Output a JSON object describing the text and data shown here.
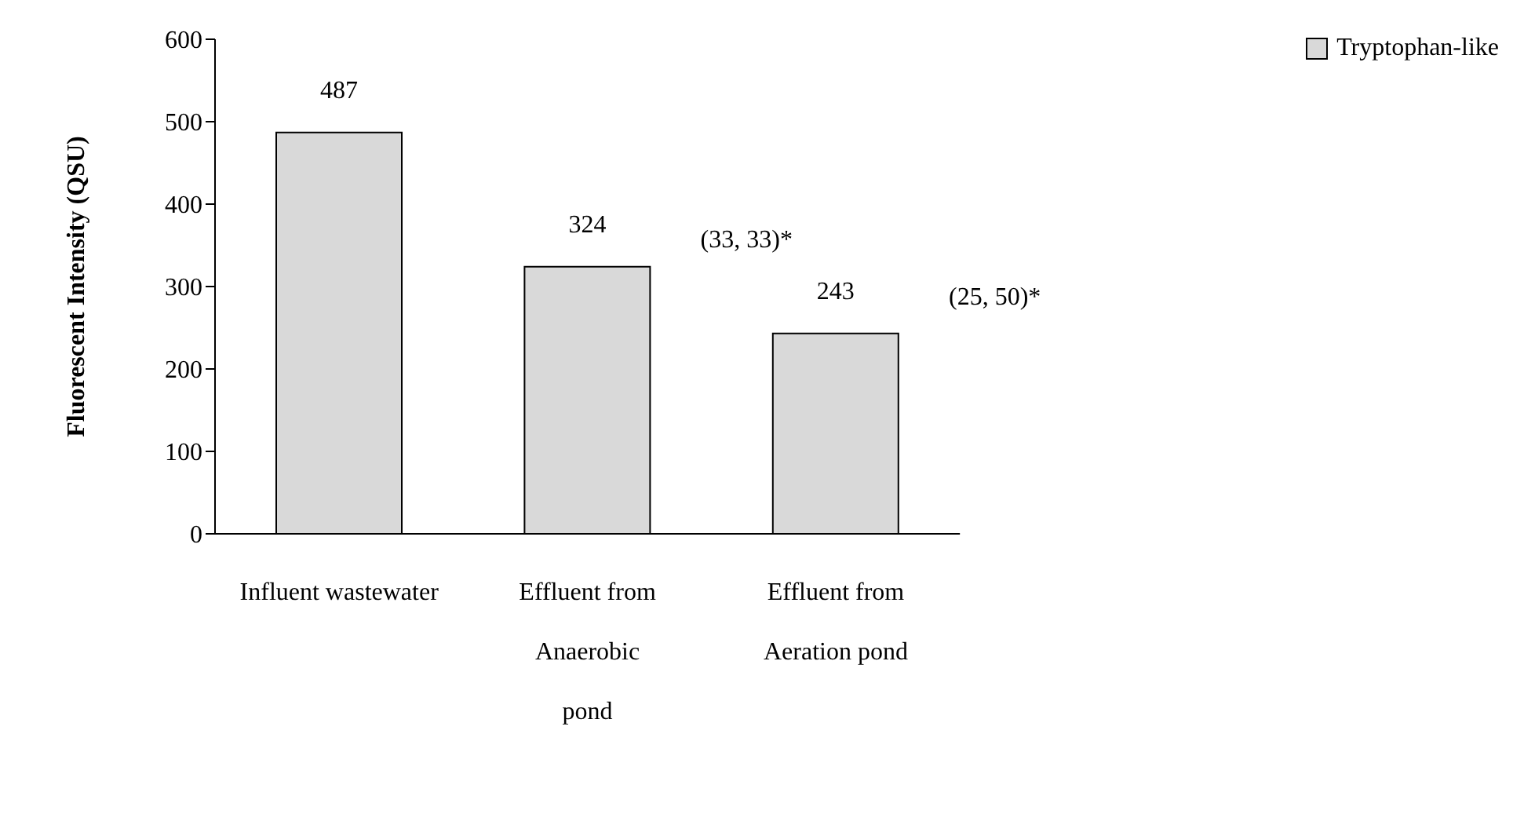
{
  "chart_data": {
    "type": "bar",
    "ylabel": "Fluorescent Intensity (QSU)",
    "categories": [
      "Influent wastewater",
      "Effluent from Anaerobic pond",
      "Effluent from Aeration pond"
    ],
    "series": [
      {
        "name": "Tryptophan-like",
        "color": "#d9d9d9",
        "values": [
          487,
          324,
          243
        ]
      }
    ],
    "ylim": [
      0,
      600
    ],
    "yticks": [
      0,
      100,
      200,
      300,
      400,
      500,
      600
    ],
    "grid": false,
    "legend": "top right",
    "data_labels": true,
    "annotations": [
      "(33, 33)*",
      "(25, 50)*"
    ]
  }
}
